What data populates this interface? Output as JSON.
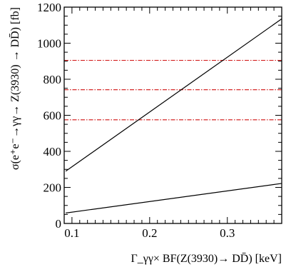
{
  "chart_data": {
    "type": "line",
    "xlabel": "Γ_γγ× BF(Z(3930)→ DD̄) [keV]",
    "ylabel": "σ(e⁺e⁻→γγ→ Z(3930) → DD̄) [fb]",
    "xlim": [
      0.09,
      0.37
    ],
    "ylim": [
      0,
      1200
    ],
    "x_ticks": [
      "0.1",
      "0.2",
      "0.3"
    ],
    "x_tick_values": [
      0.1,
      0.2,
      0.3
    ],
    "y_ticks": [
      "0",
      "200",
      "400",
      "600",
      "800",
      "1000",
      "1200"
    ],
    "y_tick_values": [
      0,
      200,
      400,
      600,
      800,
      1000,
      1200
    ],
    "grid": false,
    "series": [
      {
        "style": "solid",
        "color": "#000000",
        "x": [
          0.092,
          0.37
        ],
        "y": [
          290,
          1135
        ]
      },
      {
        "style": "solid",
        "color": "#000000",
        "x": [
          0.092,
          0.37
        ],
        "y": [
          58,
          222
        ]
      }
    ],
    "hlines": [
      {
        "y": 905,
        "style": "dash-dot",
        "color": "#d01010"
      },
      {
        "y": 742,
        "style": "dash-dot",
        "color": "#d01010"
      },
      {
        "y": 575,
        "style": "dash-dot",
        "color": "#d01010"
      }
    ]
  }
}
